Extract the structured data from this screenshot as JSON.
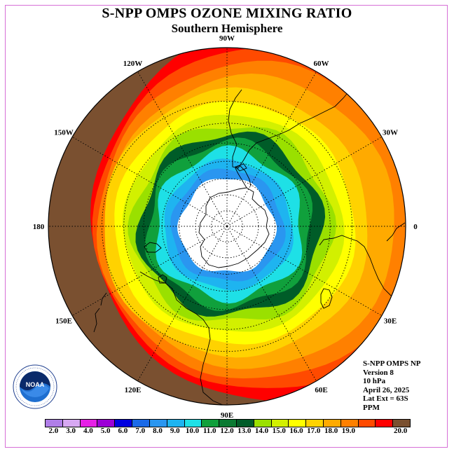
{
  "title": "S-NPP OMPS OZONE MIXING RATIO",
  "subtitle": "Southern Hemisphere",
  "map": {
    "projection": "south-polar-stereographic",
    "lon_labels": [
      {
        "text": "90W",
        "lon": -90
      },
      {
        "text": "60W",
        "lon": -60
      },
      {
        "text": "30W",
        "lon": -30
      },
      {
        "text": "0",
        "lon": 0
      },
      {
        "text": "30E",
        "lon": 30
      },
      {
        "text": "60E",
        "lon": 60
      },
      {
        "text": "90E",
        "lon": 90
      },
      {
        "text": "120E",
        "lon": 120
      },
      {
        "text": "150E",
        "lon": 150
      },
      {
        "text": "180",
        "lon": 180
      },
      {
        "text": "150W",
        "lon": -150
      },
      {
        "text": "120W",
        "lon": -120
      }
    ],
    "lat_circles": [
      -80,
      -70,
      -60,
      -50,
      -40,
      -30,
      -20
    ]
  },
  "info": {
    "line1": "S-NPP OMPS NP",
    "line2": "Version 8",
    "line3": "10 hPa",
    "line4": "April 26, 2025",
    "line5": "Lat Ext = 63S",
    "line6": "PPM"
  },
  "logo": {
    "text": "NOAA",
    "ring_text": "NATIONAL OCEANIC AND ATMOSPHERIC ADMINISTRATION · U.S. DEPARTMENT OF COMMERCE"
  },
  "colorbar": {
    "colors": [
      "#b07ee8",
      "#d7a8f2",
      "#e620e6",
      "#9c00d6",
      "#0000e0",
      "#1a6ae8",
      "#2a96f0",
      "#1eb4f0",
      "#1ee0e6",
      "#10a03c",
      "#0a7a32",
      "#005c28",
      "#9ae000",
      "#d2f000",
      "#ffff00",
      "#ffd200",
      "#ffaa00",
      "#ff8000",
      "#ff4a00",
      "#ff0000",
      "#7a5030"
    ],
    "labels": [
      "2.0",
      "3.0",
      "4.0",
      "5.0",
      "6.0",
      "7.0",
      "8.0",
      "9.0",
      "10.0",
      "11.0",
      "12.0",
      "13.0",
      "14.0",
      "15.0",
      "16.0",
      "17.0",
      "18.0",
      "19.0",
      "20.0"
    ]
  },
  "field_levels": [
    {
      "value": 20,
      "color": "#7a5030"
    },
    {
      "value": 19,
      "color": "#ff0000"
    },
    {
      "value": 18,
      "color": "#ff4a00"
    },
    {
      "value": 17,
      "color": "#ff8000"
    },
    {
      "value": 16,
      "color": "#ffaa00"
    },
    {
      "value": 15,
      "color": "#ffd200"
    },
    {
      "value": 14,
      "color": "#ffff00"
    },
    {
      "value": 13.5,
      "color": "#d2f000"
    },
    {
      "value": 13,
      "color": "#9ae000"
    },
    {
      "value": 12,
      "color": "#005c28"
    },
    {
      "value": 11,
      "color": "#10a03c"
    },
    {
      "value": 10,
      "color": "#1ee0e6"
    },
    {
      "value": 9,
      "color": "#1eb4f0"
    },
    {
      "value": 8,
      "color": "#2a96f0"
    },
    {
      "value": 7,
      "color": "#ffffff"
    }
  ]
}
